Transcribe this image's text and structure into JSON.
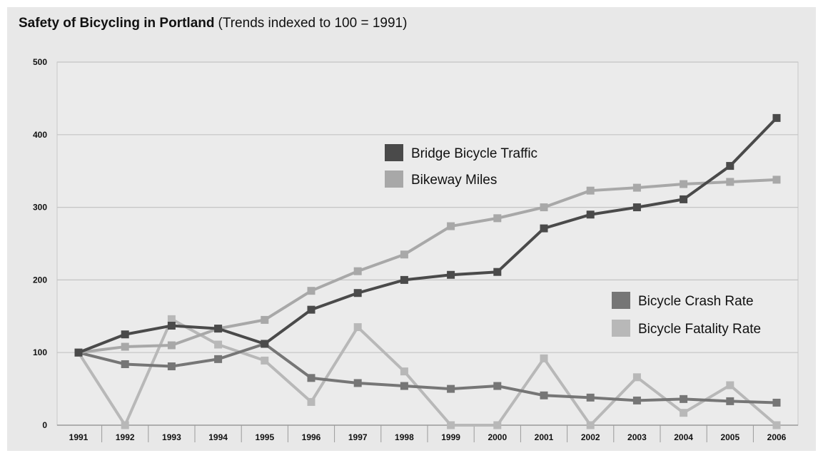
{
  "chart_data": {
    "type": "line",
    "title": "Safety of Bicycling in Portland",
    "subtitle": "(Trends indexed to 100 = 1991)",
    "xlabel": "",
    "ylabel": "",
    "categories": [
      "1991",
      "1992",
      "1993",
      "1994",
      "1995",
      "1996",
      "1997",
      "1998",
      "1999",
      "2000",
      "2001",
      "2002",
      "2003",
      "2004",
      "2005",
      "2006"
    ],
    "ylim": [
      0,
      500
    ],
    "yticks": [
      0,
      100,
      200,
      300,
      400,
      500
    ],
    "grid": "horizontal",
    "series": [
      {
        "name": "Bridge Bicycle Traffic",
        "color": "#4a4a4a",
        "values": [
          100,
          125,
          137,
          133,
          112,
          159,
          182,
          200,
          207,
          211,
          271,
          290,
          300,
          311,
          357,
          423
        ]
      },
      {
        "name": "Bikeway Miles",
        "color": "#a8a8a8",
        "values": [
          100,
          108,
          110,
          133,
          145,
          185,
          212,
          235,
          274,
          285,
          300,
          323,
          327,
          332,
          335,
          338
        ]
      },
      {
        "name": "Bicycle Crash Rate",
        "color": "#767676",
        "values": [
          100,
          84,
          81,
          91,
          112,
          65,
          58,
          54,
          50,
          54,
          41,
          38,
          34,
          36,
          33,
          31
        ]
      },
      {
        "name": "Bicycle Fatality Rate",
        "color": "#b8b8b8",
        "values": [
          100,
          0,
          146,
          111,
          89,
          32,
          135,
          74,
          0,
          0,
          92,
          0,
          66,
          17,
          55,
          0
        ]
      }
    ],
    "legends": [
      {
        "placement": "upper-center",
        "entries": [
          "Bridge Bicycle Traffic",
          "Bikeway Miles"
        ]
      },
      {
        "placement": "center-right",
        "entries": [
          "Bicycle Crash Rate",
          "Bicycle Fatality Rate"
        ]
      }
    ]
  }
}
